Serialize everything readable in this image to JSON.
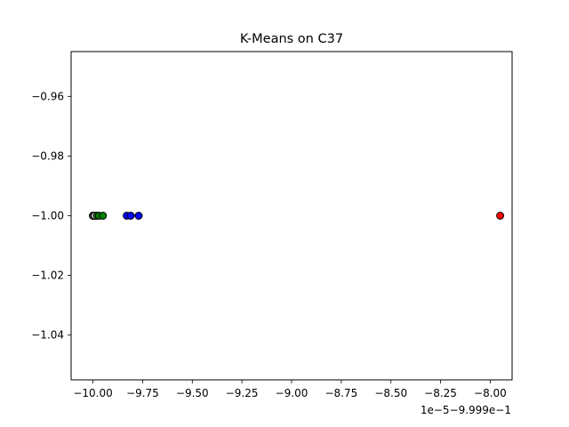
{
  "chart_data": {
    "type": "scatter",
    "title": "K-Means on C37",
    "xlabel": "",
    "ylabel": "",
    "x_offset_label": "1e−5−9.999e−1",
    "xlim": [
      -10.11,
      -7.89
    ],
    "ylim": [
      -1.055,
      -0.945
    ],
    "x_ticks": [
      -10.0,
      -9.75,
      -9.5,
      -9.25,
      -9.0,
      -8.75,
      -8.5,
      -8.25,
      -8.0
    ],
    "x_tick_labels": [
      "−10.00",
      "−9.75",
      "−9.50",
      "−9.25",
      "−9.00",
      "−8.75",
      "−8.50",
      "−8.25",
      "−8.00"
    ],
    "y_ticks": [
      -0.96,
      -0.98,
      -1.0,
      -1.02,
      -1.04
    ],
    "y_tick_labels": [
      "−0.96",
      "−0.98",
      "−1.00",
      "−1.02",
      "−1.04"
    ],
    "grid": false,
    "series": [
      {
        "color": "#ffffff",
        "x": [
          -10.0,
          -10.0,
          -9.995,
          -9.99
        ],
        "y": [
          -1.0,
          -1.0,
          -1.0,
          -1.0
        ]
      },
      {
        "color": "#008000",
        "x": [
          -9.98,
          -9.97,
          -9.95
        ],
        "y": [
          -1.0,
          -1.0,
          -1.0
        ]
      },
      {
        "color": "#0000ff",
        "x": [
          -9.83,
          -9.81,
          -9.77
        ],
        "y": [
          -1.0,
          -1.0,
          -1.0
        ]
      },
      {
        "color": "#ff0000",
        "x": [
          -7.95
        ],
        "y": [
          -1.0
        ]
      }
    ]
  }
}
